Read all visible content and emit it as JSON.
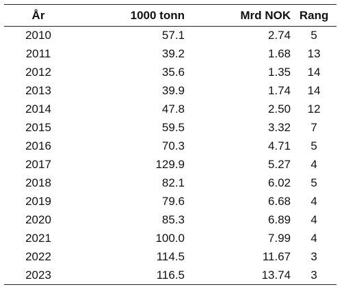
{
  "table": {
    "headers": [
      "År",
      "1000 tonn",
      "Mrd NOK",
      "Rang"
    ],
    "rows": [
      [
        "2010",
        "57.1",
        "2.74",
        "5"
      ],
      [
        "2011",
        "39.2",
        "1.68",
        "13"
      ],
      [
        "2012",
        "35.6",
        "1.35",
        "14"
      ],
      [
        "2013",
        "39.9",
        "1.74",
        "14"
      ],
      [
        "2014",
        "47.8",
        "2.50",
        "12"
      ],
      [
        "2015",
        "59.5",
        "3.32",
        "7"
      ],
      [
        "2016",
        "70.3",
        "4.71",
        "5"
      ],
      [
        "2017",
        "129.9",
        "5.27",
        "4"
      ],
      [
        "2018",
        "82.1",
        "6.02",
        "5"
      ],
      [
        "2019",
        "79.6",
        "6.68",
        "4"
      ],
      [
        "2020",
        "85.3",
        "6.89",
        "4"
      ],
      [
        "2021",
        "100.0",
        "7.99",
        "4"
      ],
      [
        "2022",
        "114.5",
        "11.67",
        "3"
      ],
      [
        "2023",
        "116.5",
        "13.74",
        "3"
      ]
    ]
  }
}
